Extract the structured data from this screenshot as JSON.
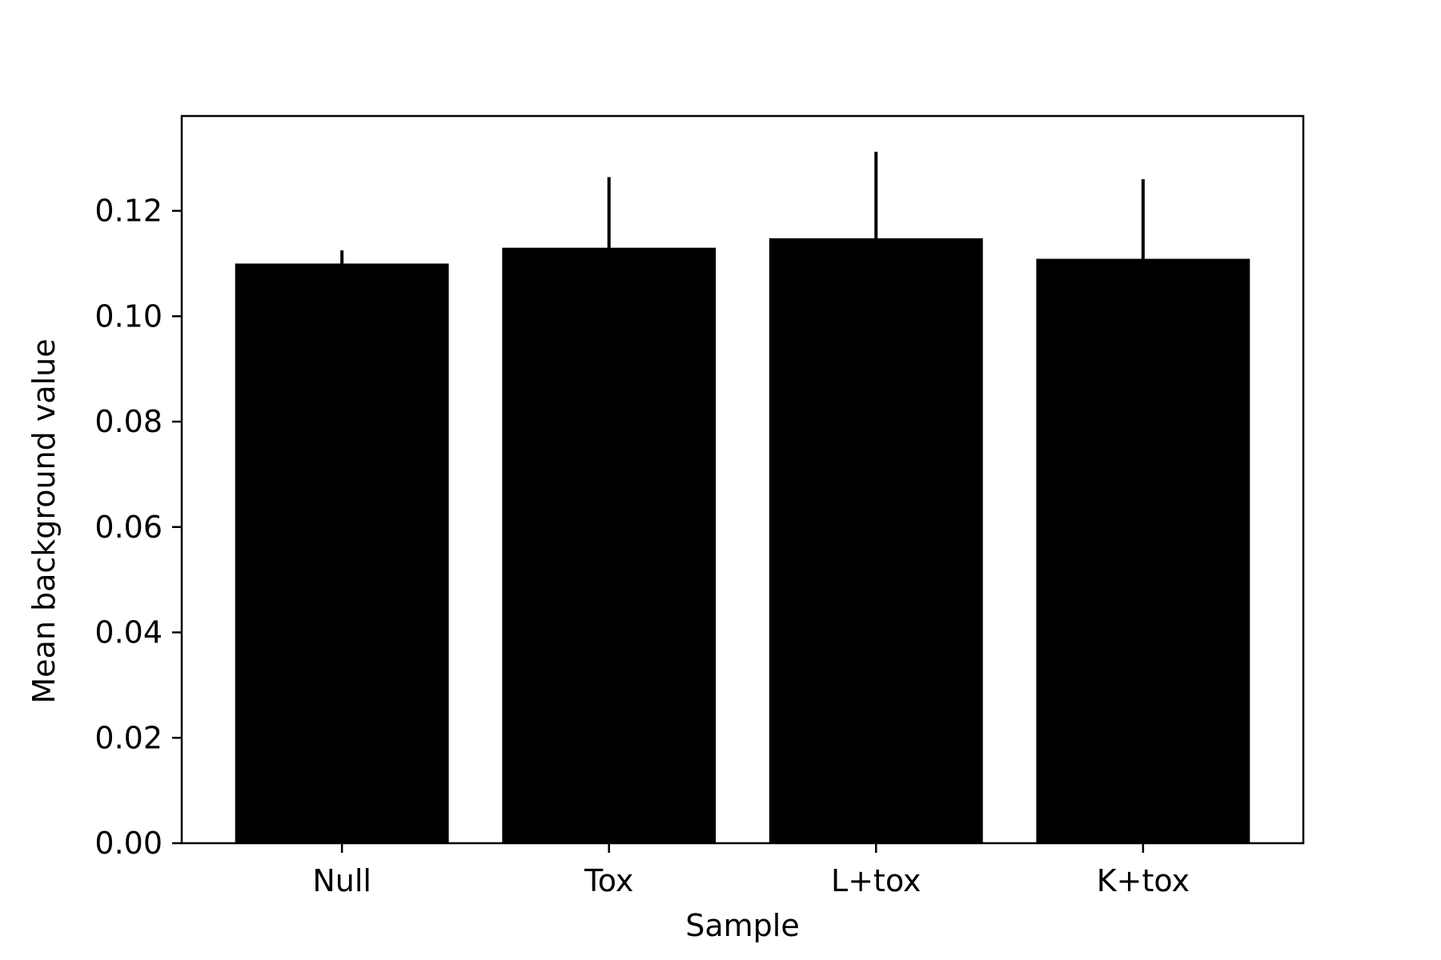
{
  "chart_data": {
    "type": "bar",
    "title": "",
    "xlabel": "Sample",
    "ylabel": "Mean background value",
    "categories": [
      "Null",
      "Tox",
      "L+tox",
      "K+tox"
    ],
    "values": [
      0.11,
      0.113,
      0.1148,
      0.1109
    ],
    "error_upper": [
      0.0025,
      0.0134,
      0.0164,
      0.0151
    ],
    "ylim": [
      0,
      0.138
    ],
    "yticks": [
      0.0,
      0.02,
      0.04,
      0.06,
      0.08,
      0.1,
      0.12
    ],
    "ytick_labels": [
      "0.00",
      "0.02",
      "0.04",
      "0.06",
      "0.08",
      "0.10",
      "0.12"
    ],
    "grid": false,
    "colors": {
      "bar": "#000000",
      "error": "#000000",
      "frame": "#000000",
      "background": "#ffffff"
    }
  }
}
